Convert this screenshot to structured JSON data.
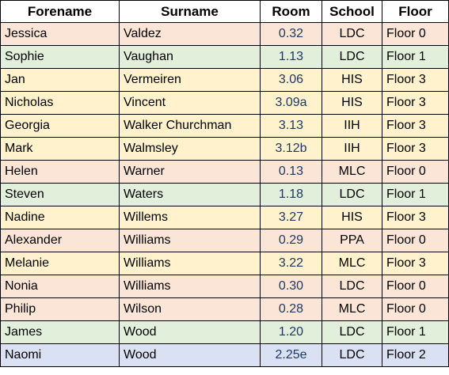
{
  "headers": {
    "forename": "Forename",
    "surname": "Surname",
    "room": "Room",
    "school": "School",
    "floor": "Floor"
  },
  "floor_colors": {
    "Floor 0": "#fbe5d6",
    "Floor 1": "#e2efda",
    "Floor 2": "#d9e1f2",
    "Floor 3": "#fff2cc"
  },
  "rows": [
    {
      "forename": "Jessica",
      "surname": "Valdez",
      "room": "0.32",
      "school": "LDC",
      "floor": "Floor 0"
    },
    {
      "forename": "Sophie",
      "surname": "Vaughan",
      "room": "1.13",
      "school": "LDC",
      "floor": "Floor 1"
    },
    {
      "forename": "Jan",
      "surname": "Vermeiren",
      "room": "3.06",
      "school": "HIS",
      "floor": "Floor 3"
    },
    {
      "forename": "Nicholas",
      "surname": "Vincent",
      "room": "3.09a",
      "school": "HIS",
      "floor": "Floor 3"
    },
    {
      "forename": "Georgia",
      "surname": "Walker Churchman",
      "room": "3.13",
      "school": "IIH",
      "floor": "Floor 3"
    },
    {
      "forename": "Mark",
      "surname": "Walmsley",
      "room": "3.12b",
      "school": "IIH",
      "floor": "Floor 3"
    },
    {
      "forename": "Helen",
      "surname": "Warner",
      "room": "0.13",
      "school": "MLC",
      "floor": "Floor 0"
    },
    {
      "forename": "Steven",
      "surname": "Waters",
      "room": "1.18",
      "school": "LDC",
      "floor": "Floor 1"
    },
    {
      "forename": "Nadine",
      "surname": "Willems",
      "room": "3.27",
      "school": "HIS",
      "floor": "Floor 3"
    },
    {
      "forename": "Alexander",
      "surname": "Williams",
      "room": "0.29",
      "school": "PPA",
      "floor": "Floor 0"
    },
    {
      "forename": "Melanie",
      "surname": "Williams",
      "room": "3.22",
      "school": "MLC",
      "floor": "Floor 3"
    },
    {
      "forename": "Nonia",
      "surname": "Williams",
      "room": "0.30",
      "school": "LDC",
      "floor": "Floor 0"
    },
    {
      "forename": "Philip",
      "surname": "Wilson",
      "room": "0.28",
      "school": "MLC",
      "floor": "Floor 0"
    },
    {
      "forename": "James",
      "surname": "Wood",
      "room": "1.20",
      "school": "LDC",
      "floor": "Floor 1"
    },
    {
      "forename": "Naomi",
      "surname": "Wood",
      "room": "2.25e",
      "school": "LDC",
      "floor": "Floor 2"
    }
  ]
}
